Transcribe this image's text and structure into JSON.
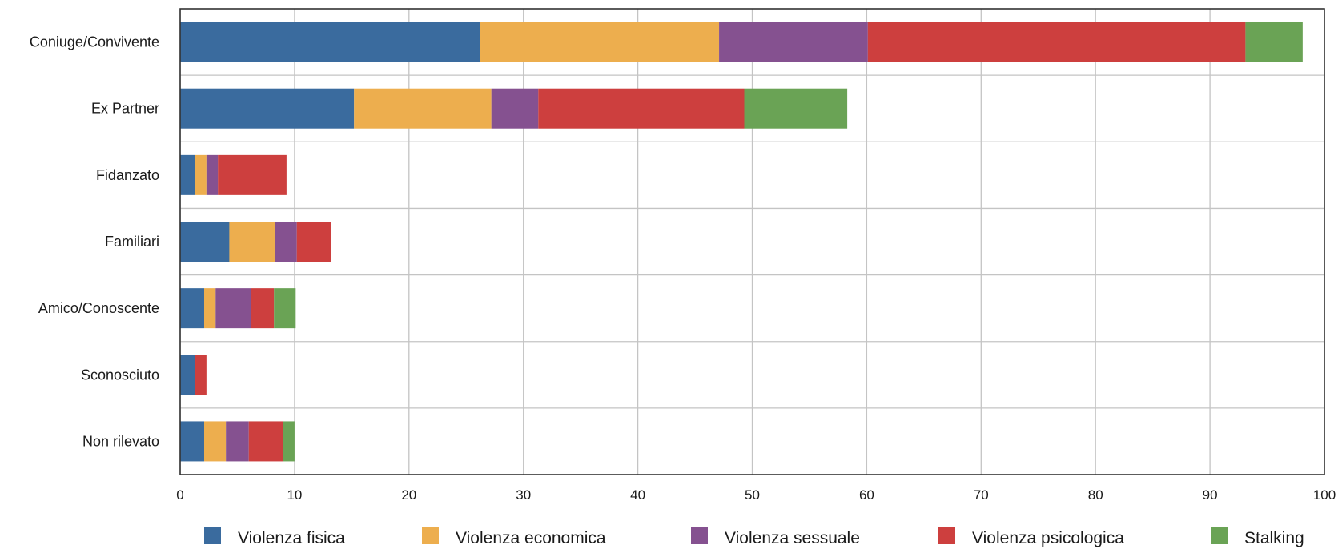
{
  "chart_data": {
    "type": "bar",
    "orientation": "horizontal",
    "stacked": true,
    "categories": [
      "Coniuge/Convivente",
      "Ex Partner",
      "Fidanzato",
      "Familiari",
      "Amico/Conoscente",
      "Sconosciuto",
      "Non rilevato"
    ],
    "series": [
      {
        "name": "Violenza fisica",
        "color": "#3a6b9e",
        "values": [
          26.2,
          15.2,
          1.3,
          4.3,
          2.1,
          1.3,
          2.1
        ]
      },
      {
        "name": "Violenza economica",
        "color": "#edae4e",
        "values": [
          20.9,
          12.0,
          1.0,
          4.0,
          1.0,
          0,
          1.9
        ]
      },
      {
        "name": "Violenza sessuale",
        "color": "#855190",
        "values": [
          13.0,
          4.1,
          1.0,
          1.9,
          3.1,
          0,
          2.0
        ]
      },
      {
        "name": "Violenza psicologica",
        "color": "#cd3f3e",
        "values": [
          33.0,
          18.0,
          6.0,
          3.0,
          2.0,
          1.0,
          3.0
        ]
      },
      {
        "name": "Stalking",
        "color": "#6aa355",
        "values": [
          5.0,
          9.0,
          0,
          0,
          1.9,
          0,
          1.0
        ]
      }
    ],
    "xlim": [
      0,
      100
    ],
    "xticks": [
      "0",
      "10",
      "20",
      "30",
      "40",
      "50",
      "60",
      "70",
      "80",
      "90",
      "100"
    ],
    "grid": true,
    "legend_position": "bottom"
  }
}
